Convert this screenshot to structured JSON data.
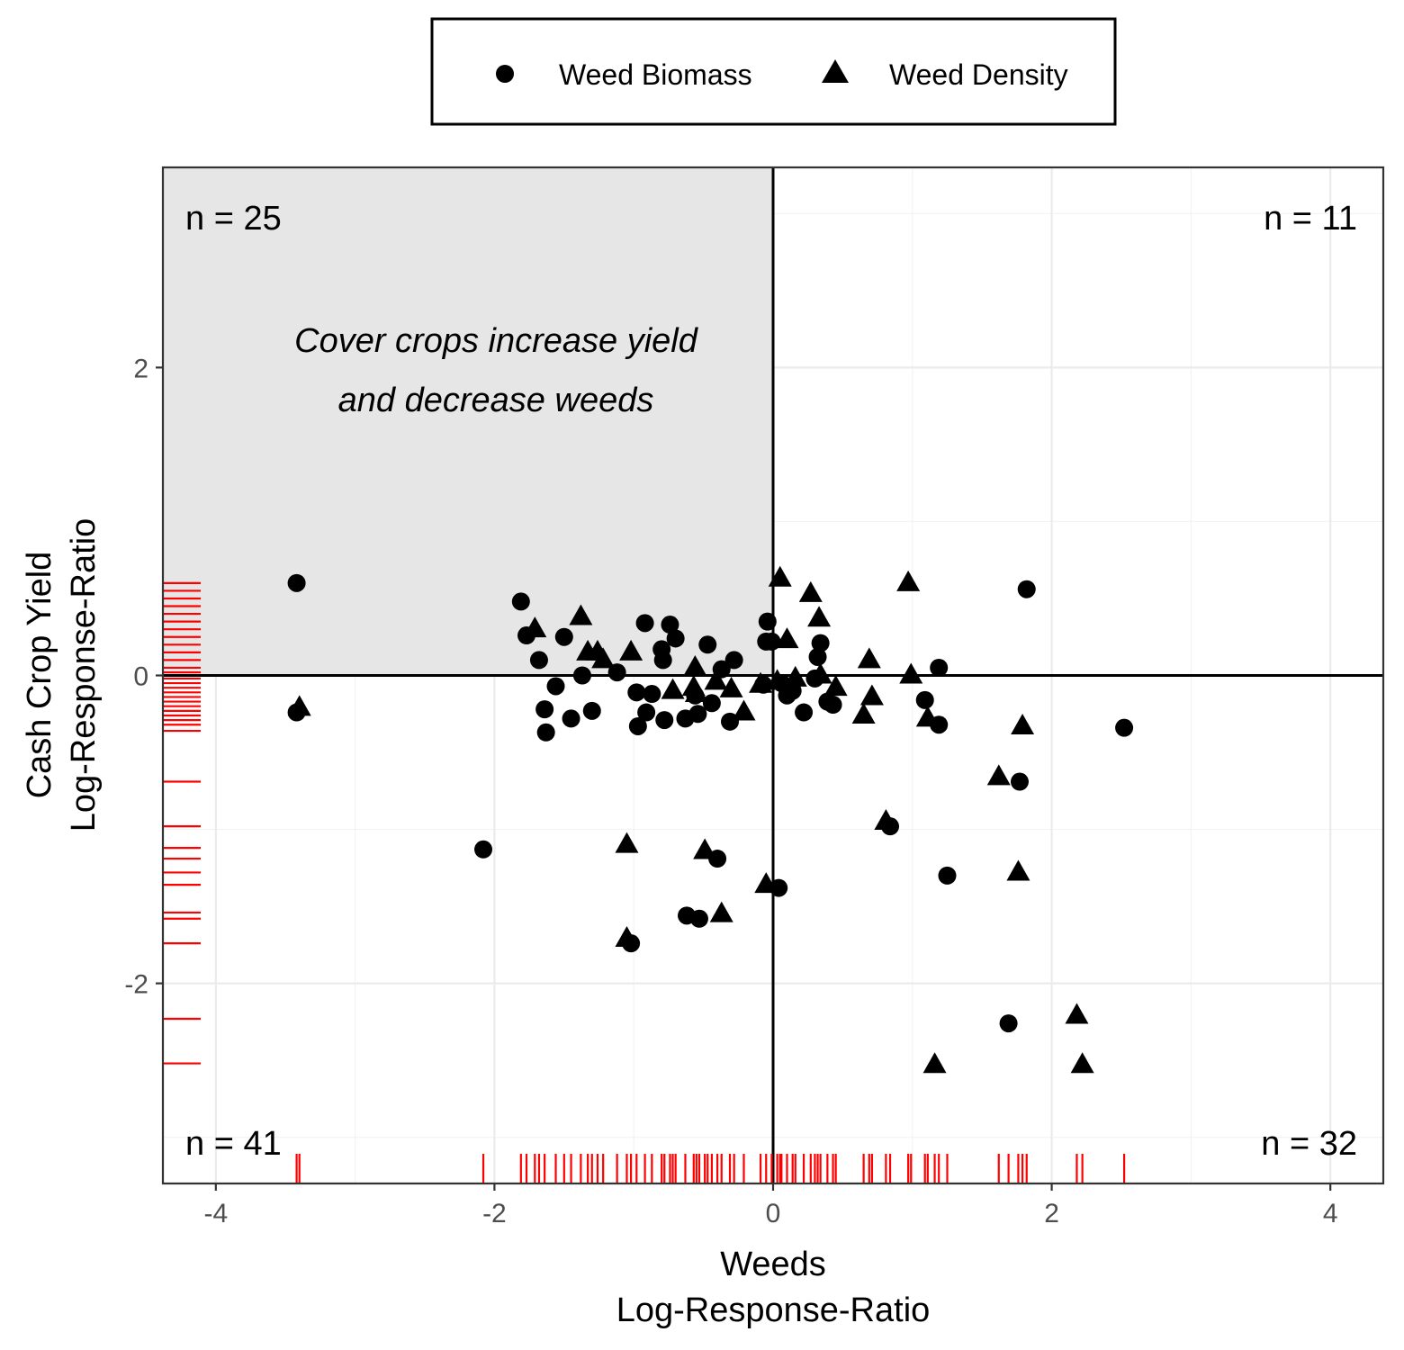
{
  "chart_data": {
    "type": "scatter",
    "xlabel": [
      "Weeds",
      "Log-Response-Ratio"
    ],
    "ylabel": [
      "Cash Crop Yield",
      "Log-Response-Ratio"
    ],
    "xlim": [
      -4.38,
      4.38
    ],
    "ylim": [
      -3.3,
      3.3
    ],
    "x_ticks": [
      -4,
      -2,
      0,
      2,
      4
    ],
    "y_ticks": [
      -2,
      0,
      2
    ],
    "grid": true,
    "legend_position": "top",
    "highlight_region": {
      "x": [
        -4.38,
        0
      ],
      "y": [
        0,
        3.3
      ],
      "color": "#e6e6e6"
    },
    "rug_color": "#ff0000",
    "reference_lines": {
      "x": 0,
      "y": 0
    },
    "annotation": [
      "Cover crops increase yield",
      "and decrease weeds"
    ],
    "quadrant_counts": {
      "top_left": "n = 25",
      "top_right": "n = 11",
      "bottom_left": "n = 41",
      "bottom_right": "n = 32"
    },
    "series": [
      {
        "name": "Weed Biomass",
        "marker": "circle",
        "color": "#000000",
        "points": [
          [
            -3.42,
            0.6
          ],
          [
            -3.42,
            -0.24
          ],
          [
            -2.08,
            -1.13
          ],
          [
            -1.81,
            0.48
          ],
          [
            -1.77,
            0.26
          ],
          [
            -1.68,
            0.1
          ],
          [
            -1.64,
            -0.22
          ],
          [
            -1.63,
            -0.37
          ],
          [
            -1.56,
            -0.07
          ],
          [
            -1.5,
            0.25
          ],
          [
            -1.45,
            -0.28
          ],
          [
            -1.37,
            0.0
          ],
          [
            -1.3,
            -0.23
          ],
          [
            -1.12,
            0.02
          ],
          [
            -0.98,
            -0.11
          ],
          [
            -0.97,
            -0.33
          ],
          [
            -0.92,
            0.34
          ],
          [
            -0.91,
            -0.24
          ],
          [
            -0.87,
            -0.12
          ],
          [
            -0.8,
            0.17
          ],
          [
            -0.79,
            0.1
          ],
          [
            -0.78,
            -0.29
          ],
          [
            -0.74,
            0.33
          ],
          [
            -0.7,
            0.24
          ],
          [
            -0.63,
            -0.28
          ],
          [
            -0.56,
            -0.13
          ],
          [
            -0.54,
            -0.25
          ],
          [
            -0.47,
            0.2
          ],
          [
            -0.44,
            -0.18
          ],
          [
            -0.37,
            0.04
          ],
          [
            -0.31,
            -0.3
          ],
          [
            -0.28,
            0.1
          ],
          [
            -0.07,
            -0.06
          ],
          [
            -0.05,
            0.22
          ],
          [
            -0.04,
            0.35
          ],
          [
            -0.01,
            0.22
          ],
          [
            0.06,
            -0.05
          ],
          [
            0.1,
            -0.13
          ],
          [
            0.14,
            -0.1
          ],
          [
            0.22,
            -0.24
          ],
          [
            0.3,
            -0.02
          ],
          [
            0.32,
            0.12
          ],
          [
            0.34,
            0.21
          ],
          [
            0.39,
            -0.17
          ],
          [
            0.43,
            -0.19
          ],
          [
            1.09,
            -0.16
          ],
          [
            1.19,
            0.05
          ],
          [
            1.19,
            -0.32
          ],
          [
            1.82,
            0.56
          ],
          [
            2.52,
            -0.34
          ],
          [
            -0.4,
            -1.19
          ],
          [
            -0.53,
            -1.58
          ],
          [
            -0.62,
            -1.56
          ],
          [
            -1.02,
            -1.74
          ],
          [
            0.04,
            -1.38
          ],
          [
            0.84,
            -0.98
          ],
          [
            1.25,
            -1.3
          ],
          [
            1.77,
            -0.69
          ],
          [
            1.69,
            -2.26
          ]
        ]
      },
      {
        "name": "Weed Density",
        "marker": "triangle",
        "color": "#000000",
        "points": [
          [
            -3.4,
            -0.21
          ],
          [
            -1.71,
            0.3
          ],
          [
            -1.38,
            0.38
          ],
          [
            -1.33,
            0.15
          ],
          [
            -1.26,
            0.15
          ],
          [
            -1.22,
            0.1
          ],
          [
            -1.02,
            0.15
          ],
          [
            -0.72,
            -0.1
          ],
          [
            -0.57,
            -0.08
          ],
          [
            -0.56,
            0.05
          ],
          [
            -0.55,
            -0.12
          ],
          [
            -0.41,
            -0.04
          ],
          [
            -0.3,
            -0.09
          ],
          [
            -0.21,
            -0.24
          ],
          [
            -0.09,
            -0.06
          ],
          [
            0.03,
            -0.04
          ],
          [
            0.05,
            0.63
          ],
          [
            0.1,
            0.23
          ],
          [
            0.16,
            -0.02
          ],
          [
            0.27,
            0.53
          ],
          [
            0.33,
            0.37
          ],
          [
            0.34,
            0.0
          ],
          [
            0.45,
            -0.08
          ],
          [
            0.65,
            -0.26
          ],
          [
            0.69,
            0.1
          ],
          [
            0.71,
            -0.14
          ],
          [
            0.97,
            0.6
          ],
          [
            0.99,
            0.0
          ],
          [
            1.11,
            -0.28
          ],
          [
            1.62,
            -0.66
          ],
          [
            1.79,
            -0.33
          ],
          [
            -1.05,
            -1.1
          ],
          [
            -1.05,
            -1.71
          ],
          [
            -0.49,
            -1.14
          ],
          [
            -0.37,
            -1.55
          ],
          [
            -0.05,
            -1.36
          ],
          [
            0.81,
            -0.95
          ],
          [
            1.16,
            -2.53
          ],
          [
            1.76,
            -1.28
          ],
          [
            2.18,
            -2.21
          ],
          [
            2.22,
            -2.53
          ]
        ]
      }
    ],
    "rug_x": [
      -3.42,
      -3.4,
      -2.08,
      -1.81,
      -1.77,
      -1.71,
      -1.68,
      -1.64,
      -1.56,
      -1.5,
      -1.45,
      -1.38,
      -1.33,
      -1.3,
      -1.26,
      -1.22,
      -1.12,
      -1.05,
      -1.02,
      -0.98,
      -0.92,
      -0.87,
      -0.8,
      -0.78,
      -0.74,
      -0.72,
      -0.7,
      -0.63,
      -0.57,
      -0.55,
      -0.53,
      -0.49,
      -0.47,
      -0.44,
      -0.4,
      -0.37,
      -0.31,
      -0.28,
      -0.21,
      -0.09,
      -0.05,
      -0.01,
      0.03,
      0.05,
      0.06,
      0.1,
      0.14,
      0.16,
      0.22,
      0.27,
      0.3,
      0.32,
      0.34,
      0.39,
      0.43,
      0.45,
      0.65,
      0.69,
      0.71,
      0.81,
      0.84,
      0.97,
      0.99,
      1.09,
      1.11,
      1.16,
      1.19,
      1.25,
      1.62,
      1.69,
      1.76,
      1.79,
      1.82,
      2.18,
      2.22,
      2.52
    ],
    "rug_y": [
      0.6,
      0.55,
      0.5,
      0.45,
      0.4,
      0.35,
      0.3,
      0.25,
      0.2,
      0.15,
      0.1,
      0.05,
      0.02,
      -0.02,
      -0.05,
      -0.08,
      -0.11,
      -0.14,
      -0.17,
      -0.2,
      -0.23,
      -0.26,
      -0.29,
      -0.32,
      -0.36,
      -0.69,
      -0.98,
      -1.12,
      -1.19,
      -1.28,
      -1.36,
      -1.54,
      -1.58,
      -1.74,
      -2.23,
      -2.52
    ]
  },
  "legend": {
    "items": [
      {
        "label": "Weed Biomass",
        "marker": "circle"
      },
      {
        "label": "Weed Density",
        "marker": "triangle"
      }
    ]
  }
}
